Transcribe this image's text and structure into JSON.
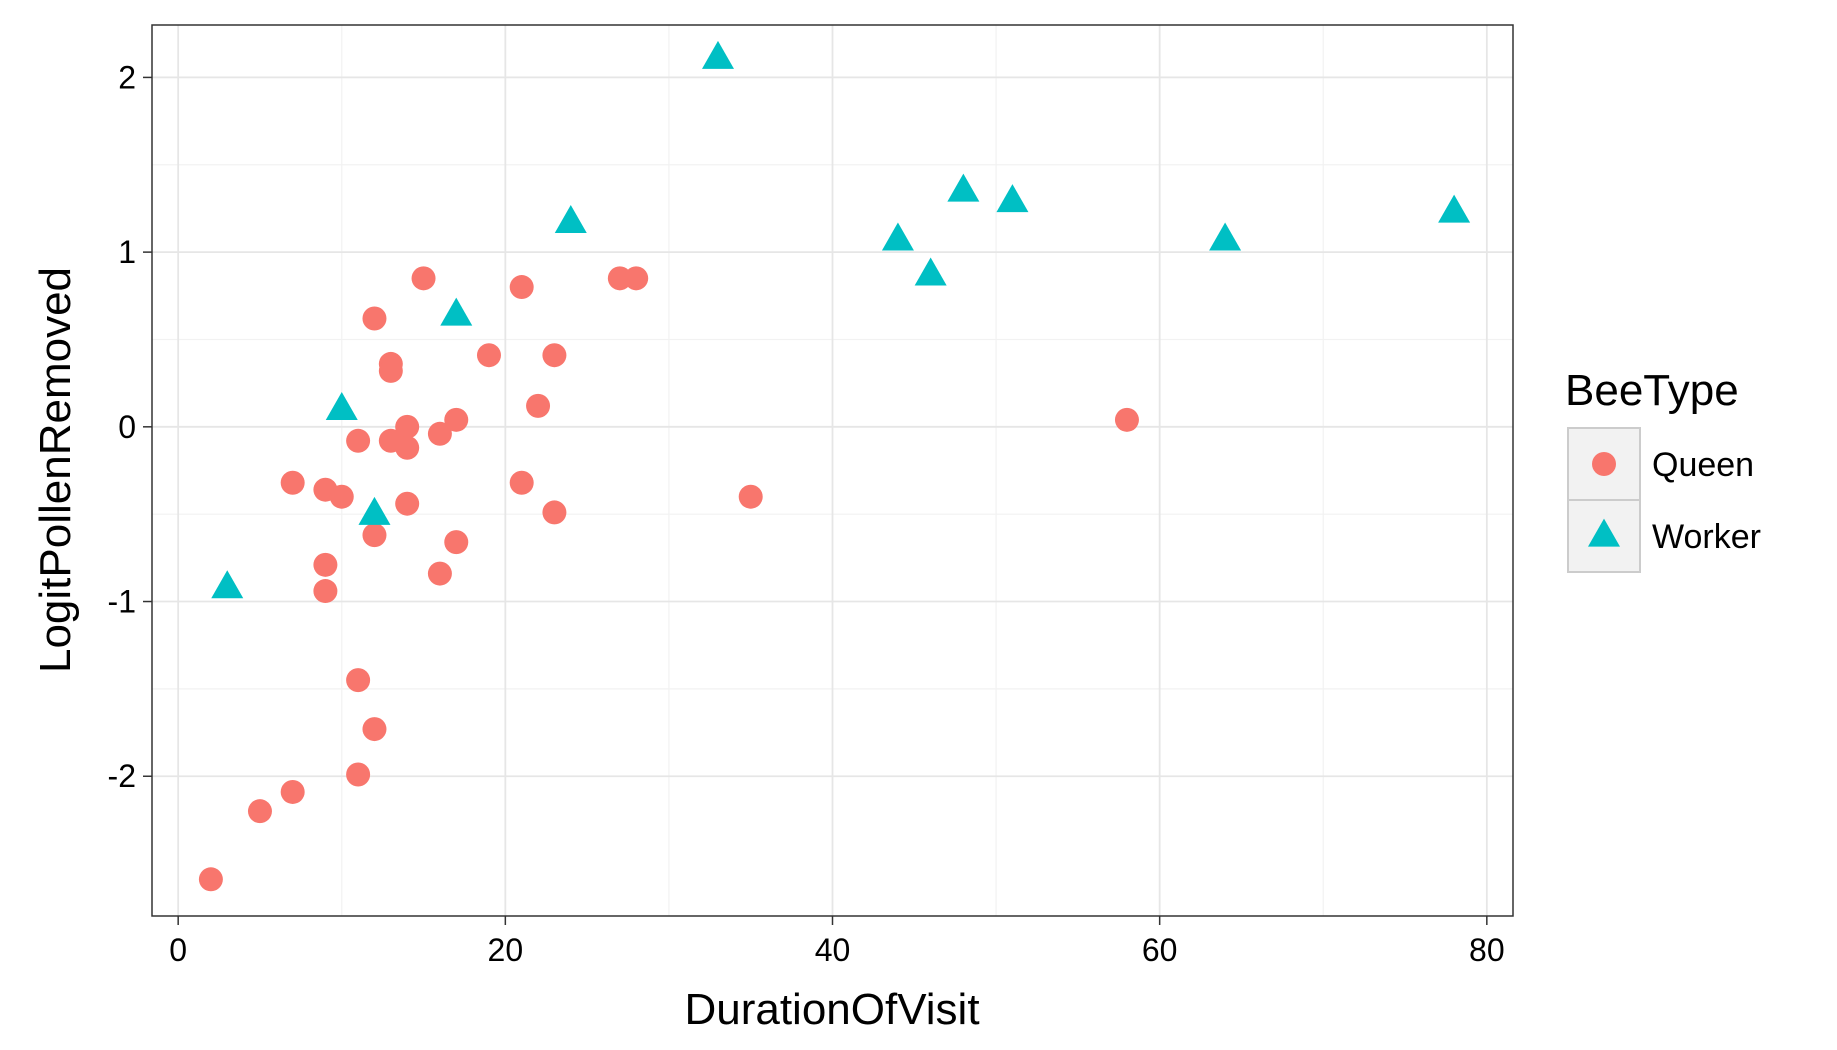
{
  "chart_data": {
    "type": "scatter",
    "xlabel": "DurationOfVisit",
    "ylabel": "LogitPollenRemoved",
    "xlim": [
      -1.6,
      81.6
    ],
    "ylim": [
      -2.8,
      2.3
    ],
    "x_ticks": [
      0,
      20,
      40,
      60,
      80
    ],
    "x_tick_labels": [
      "0",
      "20",
      "40",
      "60",
      "80"
    ],
    "y_ticks": [
      -2,
      -1,
      0,
      1,
      2
    ],
    "y_tick_labels": [
      "-2",
      "-1",
      "0",
      "1",
      "2"
    ],
    "grid": true,
    "legend": {
      "title": "BeeType",
      "position": "right"
    },
    "series": [
      {
        "name": "Queen",
        "marker": "circle",
        "color": "#F8766D",
        "points": [
          [
            2,
            -2.59
          ],
          [
            5,
            -2.2
          ],
          [
            7,
            -2.09
          ],
          [
            7,
            -0.32
          ],
          [
            9,
            -0.36
          ],
          [
            9,
            -0.79
          ],
          [
            9,
            -0.94
          ],
          [
            10,
            -0.4
          ],
          [
            11,
            -0.08
          ],
          [
            11,
            -1.45
          ],
          [
            11,
            -1.99
          ],
          [
            12,
            0.62
          ],
          [
            12,
            -0.62
          ],
          [
            12,
            -1.73
          ],
          [
            13,
            0.36
          ],
          [
            13,
            0.32
          ],
          [
            13,
            -0.08
          ],
          [
            14,
            0.0
          ],
          [
            14,
            -0.12
          ],
          [
            14,
            -0.44
          ],
          [
            15,
            0.85
          ],
          [
            16,
            -0.04
          ],
          [
            16,
            -0.84
          ],
          [
            17,
            0.04
          ],
          [
            17,
            -0.66
          ],
          [
            19,
            0.41
          ],
          [
            21,
            0.8
          ],
          [
            21,
            -0.32
          ],
          [
            22,
            0.12
          ],
          [
            23,
            0.41
          ],
          [
            23,
            -0.49
          ],
          [
            27,
            0.85
          ],
          [
            28,
            0.85
          ],
          [
            35,
            -0.4
          ],
          [
            58,
            0.04
          ]
        ]
      },
      {
        "name": "Worker",
        "marker": "triangle",
        "color": "#00BFC4",
        "points": [
          [
            3,
            -0.92
          ],
          [
            10,
            0.1
          ],
          [
            12,
            -0.5
          ],
          [
            17,
            0.64
          ],
          [
            24,
            1.17
          ],
          [
            33,
            2.11
          ],
          [
            44,
            1.07
          ],
          [
            46,
            0.87
          ],
          [
            48,
            1.35
          ],
          [
            51,
            1.29
          ],
          [
            64,
            1.07
          ],
          [
            78,
            1.23
          ]
        ]
      }
    ]
  }
}
